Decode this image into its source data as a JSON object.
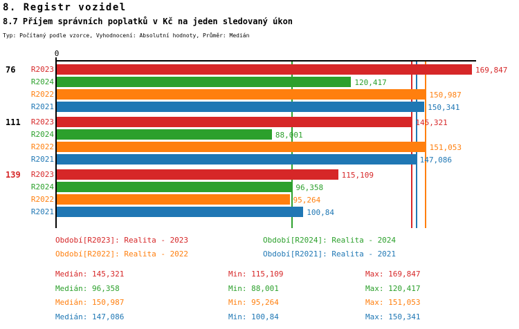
{
  "header": {
    "title": "8. Registr vozidel",
    "subtitle": "8.7 Příjem správních poplatků v Kč na jeden sledovaný úkon",
    "meta": "Typ: Počítaný podle vzorce, Vyhodnocení: Absolutní hodnoty, Průměr: Medián"
  },
  "colors": {
    "R2023": "#d62728",
    "R2024": "#2ca02c",
    "R2022": "#ff7f0e",
    "R2021": "#1f77b4",
    "text": "#000000"
  },
  "chart_data": {
    "type": "bar",
    "orientation": "horizontal",
    "axis_zero_label": "0",
    "xlim": [
      0,
      169.847
    ],
    "grid": false,
    "series_order": [
      "R2023",
      "R2024",
      "R2022",
      "R2021"
    ],
    "groups": [
      {
        "label": "76",
        "label_color": "#000000",
        "bars": [
          {
            "series": "R2023",
            "value": 169.847,
            "value_label": "169,847"
          },
          {
            "series": "R2024",
            "value": 120.417,
            "value_label": "120,417"
          },
          {
            "series": "R2022",
            "value": 150.987,
            "value_label": "150,987"
          },
          {
            "series": "R2021",
            "value": 150.341,
            "value_label": "150,341"
          }
        ]
      },
      {
        "label": "111",
        "label_color": "#000000",
        "bars": [
          {
            "series": "R2023",
            "value": 145.321,
            "value_label": "145,321"
          },
          {
            "series": "R2024",
            "value": 88.001,
            "value_label": "88,001"
          },
          {
            "series": "R2022",
            "value": 151.053,
            "value_label": "151,053"
          },
          {
            "series": "R2021",
            "value": 147.086,
            "value_label": "147,086"
          }
        ]
      },
      {
        "label": "139",
        "label_color": "#d62728",
        "bars": [
          {
            "series": "R2023",
            "value": 115.109,
            "value_label": "115,109"
          },
          {
            "series": "R2024",
            "value": 96.358,
            "value_label": "96,358"
          },
          {
            "series": "R2022",
            "value": 95.264,
            "value_label": "95,264"
          },
          {
            "series": "R2021",
            "value": 100.84,
            "value_label": "100,84"
          }
        ]
      }
    ],
    "median_lines": [
      {
        "series": "R2024",
        "value": 96.358
      },
      {
        "series": "R2023",
        "value": 145.321
      },
      {
        "series": "R2021",
        "value": 147.086
      },
      {
        "series": "R2022",
        "value": 150.987
      }
    ],
    "legend": [
      {
        "series": "R2023",
        "text": "Období[R2023]: Realita - 2023"
      },
      {
        "series": "R2024",
        "text": "Období[R2024]: Realita - 2024"
      },
      {
        "series": "R2022",
        "text": "Období[R2022]: Realita - 2022"
      },
      {
        "series": "R2021",
        "text": "Období[R2021]: Realita - 2021"
      }
    ],
    "stats": [
      {
        "series": "R2023",
        "median": "Medián: 145,321",
        "min": "Min: 115,109",
        "max": "Max: 169,847"
      },
      {
        "series": "R2024",
        "median": "Medián: 96,358",
        "min": "Min: 88,001",
        "max": "Max: 120,417"
      },
      {
        "series": "R2022",
        "median": "Medián: 150,987",
        "min": "Min: 95,264",
        "max": "Max: 151,053"
      },
      {
        "series": "R2021",
        "median": "Medián: 147,086",
        "min": "Min: 100,84",
        "max": "Max: 150,341"
      }
    ]
  }
}
